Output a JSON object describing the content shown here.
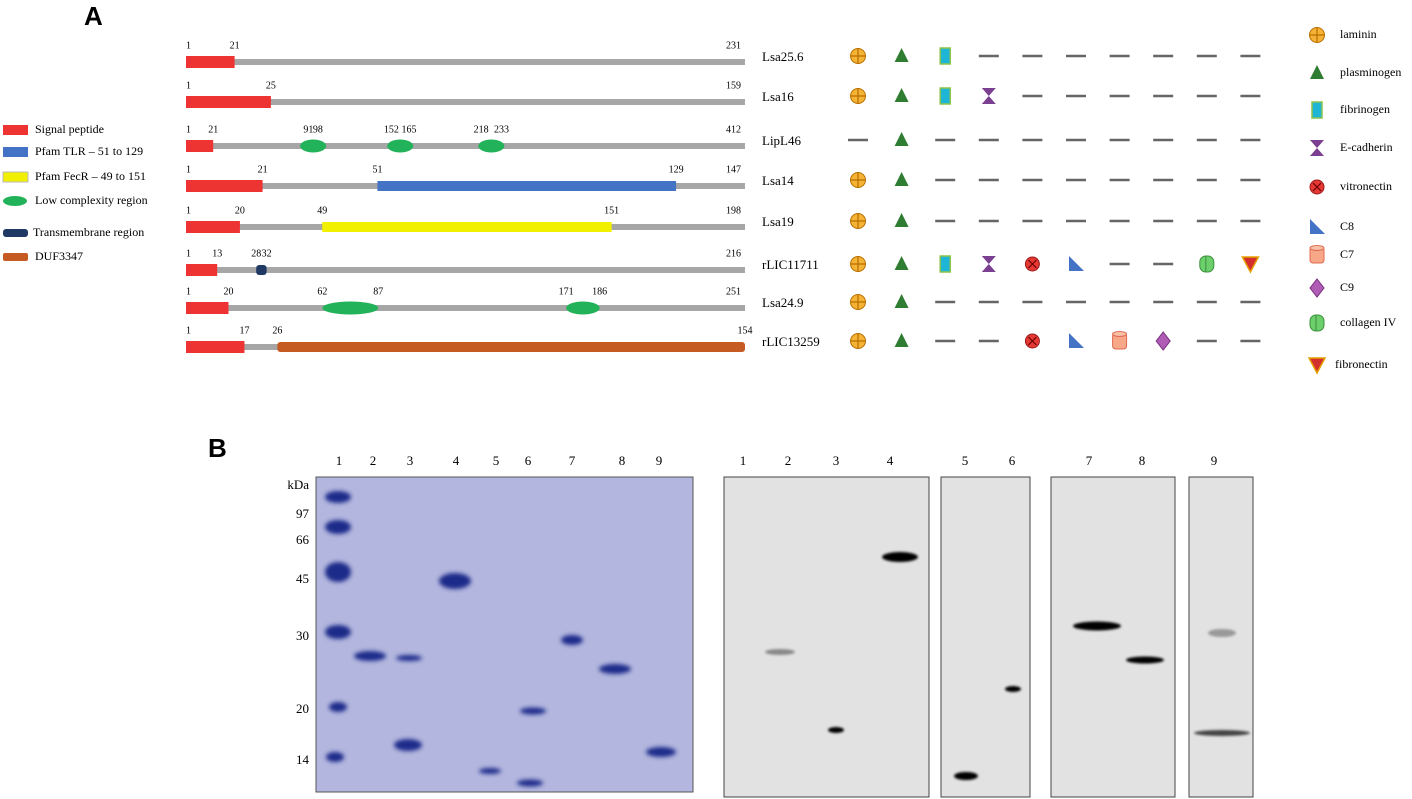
{
  "panel_a": {
    "label": "A",
    "legend": [
      "Signal peptide",
      "Pfam TLR – 51 to 129",
      "Pfam FecR – 49 to 151",
      "Low complexity region",
      "Transmembrane region",
      "DUF3347"
    ],
    "proteins": [
      {
        "name": "Lsa25.6",
        "length": 231,
        "features": [
          {
            "kind": "Signal peptide",
            "from": 1,
            "to": 21
          }
        ],
        "binding": [
          "laminin",
          "plasminogen",
          "fibrinogen",
          null,
          null,
          null,
          null,
          null,
          null,
          null
        ]
      },
      {
        "name": "Lsa16",
        "length": 159,
        "features": [
          {
            "kind": "Signal peptide",
            "from": 1,
            "to": 25
          }
        ],
        "binding": [
          "laminin",
          "plasminogen",
          "fibrinogen",
          "E-cadherin",
          null,
          null,
          null,
          null,
          null,
          null
        ]
      },
      {
        "name": "LipL46",
        "length": 412,
        "features": [
          {
            "kind": "Signal peptide",
            "from": 1,
            "to": 21
          },
          {
            "kind": "Low complexity region",
            "from": 91,
            "to": 98
          },
          {
            "kind": "Low complexity region",
            "from": 152,
            "to": 165
          },
          {
            "kind": "Low complexity region",
            "from": 218,
            "to": 233
          }
        ],
        "binding": [
          null,
          "plasminogen",
          null,
          null,
          null,
          null,
          null,
          null,
          null,
          null
        ]
      },
      {
        "name": "Lsa14",
        "length": 147,
        "features": [
          {
            "kind": "Signal peptide",
            "from": 1,
            "to": 21
          },
          {
            "kind": "Pfam TLR – 51 to 129",
            "from": 51,
            "to": 129
          }
        ],
        "binding": [
          "laminin",
          "plasminogen",
          null,
          null,
          null,
          null,
          null,
          null,
          null,
          null
        ]
      },
      {
        "name": "Lsa19",
        "length": 198,
        "features": [
          {
            "kind": "Signal peptide",
            "from": 1,
            "to": 20
          },
          {
            "kind": "Pfam FecR – 49 to 151",
            "from": 49,
            "to": 151
          }
        ],
        "binding": [
          "laminin",
          "plasminogen",
          null,
          null,
          null,
          null,
          null,
          null,
          null,
          null
        ]
      },
      {
        "name": "rLIC11711",
        "length": 216,
        "features": [
          {
            "kind": "Signal peptide",
            "from": 1,
            "to": 13
          },
          {
            "kind": "Transmembrane region",
            "from": 28,
            "to": 32
          }
        ],
        "binding": [
          "laminin",
          "plasminogen",
          "fibrinogen",
          "E-cadherin",
          "vitronectin",
          "C8",
          null,
          null,
          "collagen IV",
          "fibronectin"
        ]
      },
      {
        "name": "Lsa24.9",
        "length": 251,
        "features": [
          {
            "kind": "Signal peptide",
            "from": 1,
            "to": 20
          },
          {
            "kind": "Low complexity region",
            "from": 62,
            "to": 87
          },
          {
            "kind": "Low complexity region",
            "from": 171,
            "to": 186
          }
        ],
        "binding": [
          "laminin",
          "plasminogen",
          null,
          null,
          null,
          null,
          null,
          null,
          null,
          null
        ]
      },
      {
        "name": "rLIC13259",
        "features": [
          {
            "kind": "Signal peptide",
            "from": 1,
            "to": 17
          },
          {
            "kind": "DUF3347",
            "from": 26,
            "to": 154
          }
        ],
        "binding": [
          "laminin",
          "plasminogen",
          null,
          null,
          "vitronectin",
          "C8",
          "C7",
          "C9",
          null,
          null
        ]
      }
    ],
    "ligands": [
      "laminin",
      "plasminogen",
      "fibrinogen",
      "E-cadherin",
      "vitronectin",
      "C8",
      "C7",
      "C9",
      "collagen IV",
      "fibronectin"
    ]
  },
  "panel_b": {
    "label": "B",
    "gel": {
      "lanes": [
        1,
        2,
        3,
        4,
        5,
        6,
        7,
        8,
        9
      ],
      "unit": "kDa",
      "markers": [
        97,
        66,
        45,
        30,
        20,
        14
      ]
    },
    "blot": {
      "lanes": [
        1,
        2,
        3,
        4,
        5,
        6,
        7,
        8,
        9
      ]
    }
  }
}
